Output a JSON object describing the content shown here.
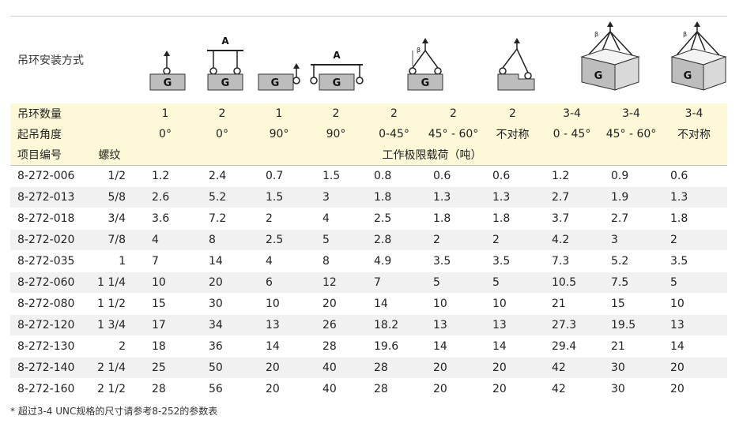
{
  "mount_label": "吊环安装方式",
  "diagram_labels": {
    "block": "G",
    "top_bar": "A",
    "angle": "β"
  },
  "header": {
    "count_label": "吊环数量",
    "angle_label": "起吊角度",
    "item_label": "项目编号",
    "thread_label": "螺纹",
    "load_label": "工作极限载荷（吨）",
    "counts": [
      "1",
      "2",
      "1",
      "2",
      "2",
      "2",
      "2",
      "3-4",
      "3-4",
      "3-4"
    ],
    "angles": [
      "0°",
      "0°",
      "90°",
      "90°",
      "0-45°",
      "45° - 60°",
      "不对称",
      "0 - 45°",
      "45° - 60°",
      "不对称"
    ]
  },
  "rows": [
    {
      "pn": "8-272-006",
      "thread": "1/2",
      "v": [
        "1.2",
        "2.4",
        "0.7",
        "1.5",
        "0.8",
        "0.6",
        "0.6",
        "1.2",
        "0.9",
        "0.6"
      ]
    },
    {
      "pn": "8-272-013",
      "thread": "5/8",
      "v": [
        "2.6",
        "5.2",
        "1.5",
        "3",
        "1.8",
        "1.3",
        "1.3",
        "2.7",
        "1.9",
        "1.3"
      ]
    },
    {
      "pn": "8-272-018",
      "thread": "3/4",
      "v": [
        "3.6",
        "7.2",
        "2",
        "4",
        "2.5",
        "1.8",
        "1.8",
        "3.7",
        "2.7",
        "1.8"
      ]
    },
    {
      "pn": "8-272-020",
      "thread": "7/8",
      "v": [
        "4",
        "8",
        "2.5",
        "5",
        "2.8",
        "2",
        "2",
        "4.2",
        "3",
        "2"
      ]
    },
    {
      "pn": "8-272-035",
      "thread": "1",
      "v": [
        "7",
        "14",
        "4",
        "8",
        "4.9",
        "3.5",
        "3.5",
        "7.3",
        "5.2",
        "3.5"
      ]
    },
    {
      "pn": "8-272-060",
      "thread": "1 1/4",
      "v": [
        "10",
        "20",
        "6",
        "12",
        "7",
        "5",
        "5",
        "10.5",
        "7.5",
        "5"
      ]
    },
    {
      "pn": "8-272-080",
      "thread": "1 1/2",
      "v": [
        "15",
        "30",
        "10",
        "20",
        "14",
        "10",
        "10",
        "21",
        "15",
        "10"
      ]
    },
    {
      "pn": "8-272-120",
      "thread": "1 3/4",
      "v": [
        "17",
        "34",
        "13",
        "26",
        "18.2",
        "13",
        "13",
        "27.3",
        "19.5",
        "13"
      ]
    },
    {
      "pn": "8-272-130",
      "thread": "2",
      "v": [
        "18",
        "36",
        "14",
        "28",
        "19.6",
        "14",
        "14",
        "29.4",
        "21",
        "14"
      ]
    },
    {
      "pn": "8-272-140",
      "thread": "2 1/4",
      "v": [
        "25",
        "50",
        "20",
        "40",
        "28",
        "20",
        "20",
        "42",
        "30",
        "20"
      ]
    },
    {
      "pn": "8-272-160",
      "thread": "2 1/2",
      "v": [
        "28",
        "56",
        "20",
        "40",
        "28",
        "20",
        "20",
        "42",
        "30",
        "20"
      ]
    }
  ],
  "footnote": "* 超过3-4 UNC规格的尺寸请参考8-252的参数表"
}
